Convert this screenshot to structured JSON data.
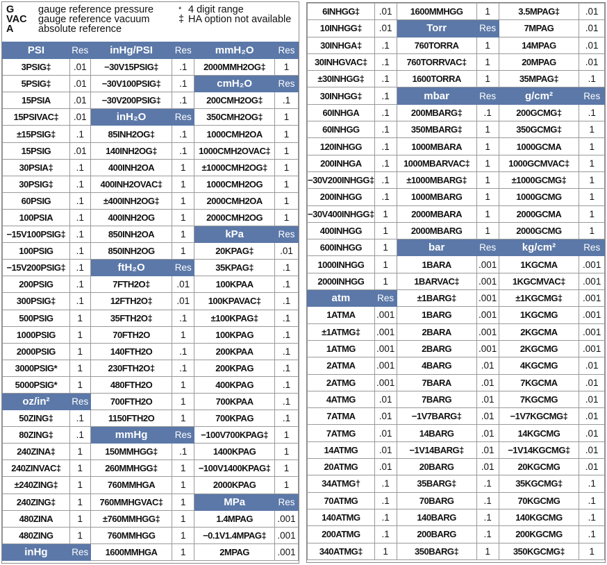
{
  "legend": {
    "items": [
      {
        "key": "G",
        "text": "gauge reference pressure"
      },
      {
        "key": "VAC",
        "text": "gauge reference vacuum"
      },
      {
        "key": "A",
        "text": "absolute reference"
      }
    ],
    "notes": [
      {
        "key": "*",
        "text": "4 digit range"
      },
      {
        "key": "‡",
        "text": "HA option not available"
      }
    ]
  },
  "res_label": "Res",
  "left_columns": [
    [
      {
        "h": "PSI"
      },
      {
        "n": "3PSIG‡",
        "r": ".01"
      },
      {
        "n": "5PSIG‡",
        "r": ".01"
      },
      {
        "n": "15PSIA",
        "r": ".01"
      },
      {
        "n": "15PSIVAC‡",
        "r": ".01"
      },
      {
        "n": "±15PSIG‡",
        "r": ".1"
      },
      {
        "n": "15PSIG",
        "r": ".01"
      },
      {
        "n": "30PSIA‡",
        "r": ".1"
      },
      {
        "n": "30PSIG‡",
        "r": ".1"
      },
      {
        "n": "60PSIG",
        "r": ".1"
      },
      {
        "n": "100PSIA",
        "r": ".1"
      },
      {
        "n": "−15V100PSIG‡",
        "r": ".1"
      },
      {
        "n": "100PSIG",
        "r": ".1"
      },
      {
        "n": "−15V200PSIG‡",
        "r": ".1"
      },
      {
        "n": "200PSIG",
        "r": ".1"
      },
      {
        "n": "300PSIG‡",
        "r": ".1"
      },
      {
        "n": "500PSIG",
        "r": "1"
      },
      {
        "n": "1000PSIG",
        "r": "1"
      },
      {
        "n": "2000PSIG",
        "r": "1"
      },
      {
        "n": "3000PSIG*",
        "r": "1"
      },
      {
        "n": "5000PSIG*",
        "r": "1"
      },
      {
        "h": "oz/in²"
      },
      {
        "n": "50ZING‡",
        "r": ".1"
      },
      {
        "n": "80ZING‡",
        "r": ".1"
      },
      {
        "n": "240ZINA‡",
        "r": "1"
      },
      {
        "n": "240ZINVAC‡",
        "r": "1"
      },
      {
        "n": "±240ZING‡",
        "r": "1"
      },
      {
        "n": "240ZING‡",
        "r": "1"
      },
      {
        "n": "480ZINA",
        "r": "1"
      },
      {
        "n": "480ZING",
        "r": "1"
      },
      {
        "h": "inHg"
      }
    ],
    [
      {
        "h": "inHg/PSI"
      },
      {
        "n": "−30V15PSIG‡",
        "r": ".1"
      },
      {
        "n": "−30V100PSIG‡",
        "r": ".1"
      },
      {
        "n": "−30V200PSIG‡",
        "r": ".1"
      },
      {
        "h": "inH₂O"
      },
      {
        "n": "85INH2OG‡",
        "r": ".1"
      },
      {
        "n": "140INH2OG‡",
        "r": ".1"
      },
      {
        "n": "400INH2OA",
        "r": "1"
      },
      {
        "n": "400INH2OVAC‡",
        "r": "1"
      },
      {
        "n": "±400INH2OG‡",
        "r": "1"
      },
      {
        "n": "400INH2OG",
        "r": "1"
      },
      {
        "n": "850INH2OA",
        "r": "1"
      },
      {
        "n": "850INH2OG",
        "r": "1"
      },
      {
        "h": "ftH₂O"
      },
      {
        "n": "7FTH2O‡",
        "r": ".01"
      },
      {
        "n": "12FTH2O‡",
        "r": ".01"
      },
      {
        "n": "35FTH2O‡",
        "r": ".1"
      },
      {
        "n": "70FTH2O",
        "r": "1"
      },
      {
        "n": "140FTH2O",
        "r": ".1"
      },
      {
        "n": "230FTH2O‡",
        "r": ".1"
      },
      {
        "n": "480FTH2O",
        "r": "1"
      },
      {
        "n": "700FTH2O",
        "r": "1"
      },
      {
        "n": "1150FTH2O",
        "r": "1"
      },
      {
        "h": "mmHg"
      },
      {
        "n": "150MMHGG‡",
        "r": ".1"
      },
      {
        "n": "260MMHGG‡",
        "r": "1"
      },
      {
        "n": "760MMHGA",
        "r": "1"
      },
      {
        "n": "760MMHGVAC‡",
        "r": "1"
      },
      {
        "n": "±760MMHGG‡",
        "r": "1"
      },
      {
        "n": "760MMHGG",
        "r": "1"
      },
      {
        "n": "1600MMHGA",
        "r": "1"
      }
    ],
    [
      {
        "h": "mmH₂O"
      },
      {
        "n": "2000MMH2OG‡",
        "r": "1"
      },
      {
        "h": "cmH₂O"
      },
      {
        "n": "200CMH2OG‡",
        "r": ".1"
      },
      {
        "n": "350CMH2OG‡",
        "r": "1"
      },
      {
        "n": "1000CMH2OA",
        "r": "1"
      },
      {
        "n": "1000CMH2OVAC‡",
        "r": "1"
      },
      {
        "n": "±1000CMH2OG‡",
        "r": "1"
      },
      {
        "n": "1000CMH2OG",
        "r": "1"
      },
      {
        "n": "2000CMH2OA",
        "r": "1"
      },
      {
        "n": "2000CMH2OG",
        "r": "1"
      },
      {
        "h": "kPa"
      },
      {
        "n": "20KPAG‡",
        "r": ".01"
      },
      {
        "n": "35KPAG‡",
        "r": ".1"
      },
      {
        "n": "100KPAA",
        "r": ".1"
      },
      {
        "n": "100KPAVAC‡",
        "r": ".1"
      },
      {
        "n": "±100KPAG‡",
        "r": ".1"
      },
      {
        "n": "100KPAG",
        "r": ".1"
      },
      {
        "n": "200KPAA",
        "r": ".1"
      },
      {
        "n": "200KPAG",
        "r": ".1"
      },
      {
        "n": "400KPAG",
        "r": ".1"
      },
      {
        "n": "700KPAA",
        "r": ".1"
      },
      {
        "n": "700KPAG",
        "r": ".1"
      },
      {
        "n": "−100V700KPAG‡",
        "r": "1"
      },
      {
        "n": "1400KPAG",
        "r": "1"
      },
      {
        "n": "−100V1400KPAG‡",
        "r": "1"
      },
      {
        "n": "2000KPAG",
        "r": "1"
      },
      {
        "h": "MPa"
      },
      {
        "n": "1.4MPAG",
        "r": ".001"
      },
      {
        "n": "−0.1V1.4MPAG‡",
        "r": ".001"
      },
      {
        "n": "2MPAG",
        "r": ".001"
      }
    ]
  ],
  "right_columns": [
    [
      {
        "n": "6INHGG‡",
        "r": ".01"
      },
      {
        "n": "10INHGG‡",
        "r": ".01"
      },
      {
        "n": "30INHGA‡",
        "r": ".1"
      },
      {
        "n": "30INHGVAC‡",
        "r": ".1"
      },
      {
        "n": "±30INHGG‡",
        "r": ".1"
      },
      {
        "n": "30INHGG‡",
        "r": ".1"
      },
      {
        "n": "60INHGA",
        "r": ".1"
      },
      {
        "n": "60INHGG",
        "r": ".1"
      },
      {
        "n": "120INHGG",
        "r": ".1"
      },
      {
        "n": "200INHGA",
        "r": ".1"
      },
      {
        "n": "−30V200INHGG‡",
        "r": ".1"
      },
      {
        "n": "200INHGG",
        "r": ".1"
      },
      {
        "n": "−30V400INHGG‡",
        "r": "1"
      },
      {
        "n": "400INHGG",
        "r": "1"
      },
      {
        "n": "600INHGG",
        "r": "1"
      },
      {
        "n": "1000INHGG",
        "r": "1"
      },
      {
        "n": "2000INHGG",
        "r": "1"
      },
      {
        "h": "atm"
      },
      {
        "n": "1ATMA",
        "r": ".001"
      },
      {
        "n": "±1ATMG‡",
        "r": ".001"
      },
      {
        "n": "1ATMG",
        "r": ".001"
      },
      {
        "n": "2ATMA",
        "r": ".001"
      },
      {
        "n": "2ATMG",
        "r": ".001"
      },
      {
        "n": "4ATMG",
        "r": ".01"
      },
      {
        "n": "7ATMA",
        "r": ".01"
      },
      {
        "n": "7ATMG",
        "r": ".01"
      },
      {
        "n": "14ATMG",
        "r": ".01"
      },
      {
        "n": "20ATMG",
        "r": ".01"
      },
      {
        "n": "34ATMG†",
        "r": ".1"
      },
      {
        "n": "70ATMG",
        "r": ".1"
      },
      {
        "n": "140ATMG",
        "r": ".1"
      },
      {
        "n": "200ATMG",
        "r": ".1"
      },
      {
        "n": "340ATMG‡",
        "r": "1"
      }
    ],
    [
      {
        "n": "1600MMHGG",
        "r": "1"
      },
      {
        "h": "Torr"
      },
      {
        "n": "760TORRA",
        "r": "1"
      },
      {
        "n": "760TORRVAC‡",
        "r": "1"
      },
      {
        "n": "1600TORRA",
        "r": "1"
      },
      {
        "h": "mbar"
      },
      {
        "n": "200MBARG‡",
        "r": ".1"
      },
      {
        "n": "350MBARG‡",
        "r": "1"
      },
      {
        "n": "1000MBARA",
        "r": "1"
      },
      {
        "n": "1000MBARVAC‡",
        "r": "1"
      },
      {
        "n": "±1000MBARG‡",
        "r": "1"
      },
      {
        "n": "1000MBARG",
        "r": "1"
      },
      {
        "n": "2000MBARA",
        "r": "1"
      },
      {
        "n": "2000MBARG",
        "r": "1"
      },
      {
        "h": "bar"
      },
      {
        "n": "1BARA",
        "r": ".001"
      },
      {
        "n": "1BARVAC‡",
        "r": ".001"
      },
      {
        "n": "±1BARG‡",
        "r": ".001"
      },
      {
        "n": "1BARG",
        "r": ".001"
      },
      {
        "n": "2BARA",
        "r": ".001"
      },
      {
        "n": "2BARG",
        "r": ".001"
      },
      {
        "n": "4BARG",
        "r": ".01"
      },
      {
        "n": "7BARA",
        "r": ".01"
      },
      {
        "n": "7BARG",
        "r": ".01"
      },
      {
        "n": "−1V7BARG‡",
        "r": ".01"
      },
      {
        "n": "14BARG",
        "r": ".01"
      },
      {
        "n": "−1V14BARG‡",
        "r": ".01"
      },
      {
        "n": "20BARG",
        "r": ".01"
      },
      {
        "n": "35BARG‡",
        "r": ".1"
      },
      {
        "n": "70BARG",
        "r": ".1"
      },
      {
        "n": "140BARG",
        "r": ".1"
      },
      {
        "n": "200BARG",
        "r": ".1"
      },
      {
        "n": "350BARG‡",
        "r": "1"
      }
    ],
    [
      {
        "n": "3.5MPAG‡",
        "r": ".01"
      },
      {
        "n": "7MPAG",
        "r": ".01"
      },
      {
        "n": "14MPAG",
        "r": ".01"
      },
      {
        "n": "20MPAG",
        "r": ".01"
      },
      {
        "n": "35MPAG‡",
        "r": ".1"
      },
      {
        "h": "g/cm²"
      },
      {
        "n": "200GCMG‡",
        "r": ".1"
      },
      {
        "n": "350GCMG‡",
        "r": "1"
      },
      {
        "n": "1000GCMA",
        "r": "1"
      },
      {
        "n": "1000GCMVAC‡",
        "r": "1"
      },
      {
        "n": "±1000GCMG‡",
        "r": "1"
      },
      {
        "n": "1000GCMG",
        "r": "1"
      },
      {
        "n": "2000GCMA",
        "r": "1"
      },
      {
        "n": "2000GCMG",
        "r": "1"
      },
      {
        "h": "kg/cm²"
      },
      {
        "n": "1KGCMA",
        "r": ".001"
      },
      {
        "n": "1KGCMVAC‡",
        "r": ".001"
      },
      {
        "n": "±1KGCMG‡",
        "r": ".001"
      },
      {
        "n": "1KGCMG",
        "r": ".001"
      },
      {
        "n": "2KGCMA",
        "r": ".001"
      },
      {
        "n": "2KGCMG",
        "r": ".001"
      },
      {
        "n": "4KGCMG",
        "r": ".01"
      },
      {
        "n": "7KGCMA",
        "r": ".01"
      },
      {
        "n": "7KGCMG",
        "r": ".01"
      },
      {
        "n": "−1V7KGCMG‡",
        "r": ".01"
      },
      {
        "n": "14KGCMG",
        "r": ".01"
      },
      {
        "n": "−1V14KGCMG‡",
        "r": ".01"
      },
      {
        "n": "20KGCMG",
        "r": ".01"
      },
      {
        "n": "35KGCMG‡",
        "r": ".1"
      },
      {
        "n": "70KGCMG",
        "r": ".1"
      },
      {
        "n": "140KGCMG",
        "r": ".1"
      },
      {
        "n": "200KGCMG",
        "r": ".1"
      },
      {
        "n": "350KGCMG‡",
        "r": "1"
      }
    ]
  ]
}
